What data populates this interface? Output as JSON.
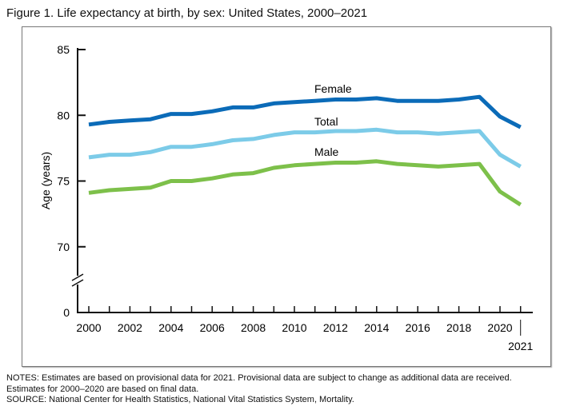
{
  "title": "Figure 1. Life expectancy at birth, by sex: United States, 2000–2021",
  "chart_data": {
    "type": "line",
    "title": "Figure 1. Life expectancy at birth, by sex: United States, 2000–2021",
    "xlabel": "",
    "ylabel": "Age (years)",
    "x": [
      2000,
      2001,
      2002,
      2003,
      2004,
      2005,
      2006,
      2007,
      2008,
      2009,
      2010,
      2011,
      2012,
      2013,
      2014,
      2015,
      2016,
      2017,
      2018,
      2019,
      2020,
      2021
    ],
    "x_tick_labels": [
      "2000",
      "2002",
      "2004",
      "2006",
      "2008",
      "2010",
      "2012",
      "2014",
      "2016",
      "2018",
      "2020",
      "2021"
    ],
    "y_tick_labels": [
      "0",
      "70",
      "75",
      "80",
      "85"
    ],
    "ylim": [
      70,
      85
    ],
    "y_axis_break": "between 0 and 70",
    "grid": false,
    "series": [
      {
        "name": "Female",
        "color": "#0b6bb8",
        "values": [
          79.3,
          79.5,
          79.6,
          79.7,
          80.1,
          80.1,
          80.3,
          80.6,
          80.6,
          80.9,
          81.0,
          81.1,
          81.2,
          81.2,
          81.3,
          81.1,
          81.1,
          81.1,
          81.2,
          81.4,
          79.9,
          79.1
        ]
      },
      {
        "name": "Total",
        "color": "#7ccbe8",
        "values": [
          76.8,
          77.0,
          77.0,
          77.2,
          77.6,
          77.6,
          77.8,
          78.1,
          78.2,
          78.5,
          78.7,
          78.7,
          78.8,
          78.8,
          78.9,
          78.7,
          78.7,
          78.6,
          78.7,
          78.8,
          77.0,
          76.1
        ]
      },
      {
        "name": "Male",
        "color": "#7dc04a",
        "values": [
          74.1,
          74.3,
          74.4,
          74.5,
          75.0,
          75.0,
          75.2,
          75.5,
          75.6,
          76.0,
          76.2,
          76.3,
          76.4,
          76.4,
          76.5,
          76.3,
          76.2,
          76.1,
          76.2,
          76.3,
          74.2,
          73.2
        ]
      }
    ]
  },
  "notes": [
    "NOTES: Estimates are based on provisional data for 2021. Provisional data are subject to change as additional data are received.",
    "Estimates for 2000–2020 are based on final data.",
    "SOURCE: National Center for Health Statistics, National Vital Statistics System, Mortality."
  ]
}
